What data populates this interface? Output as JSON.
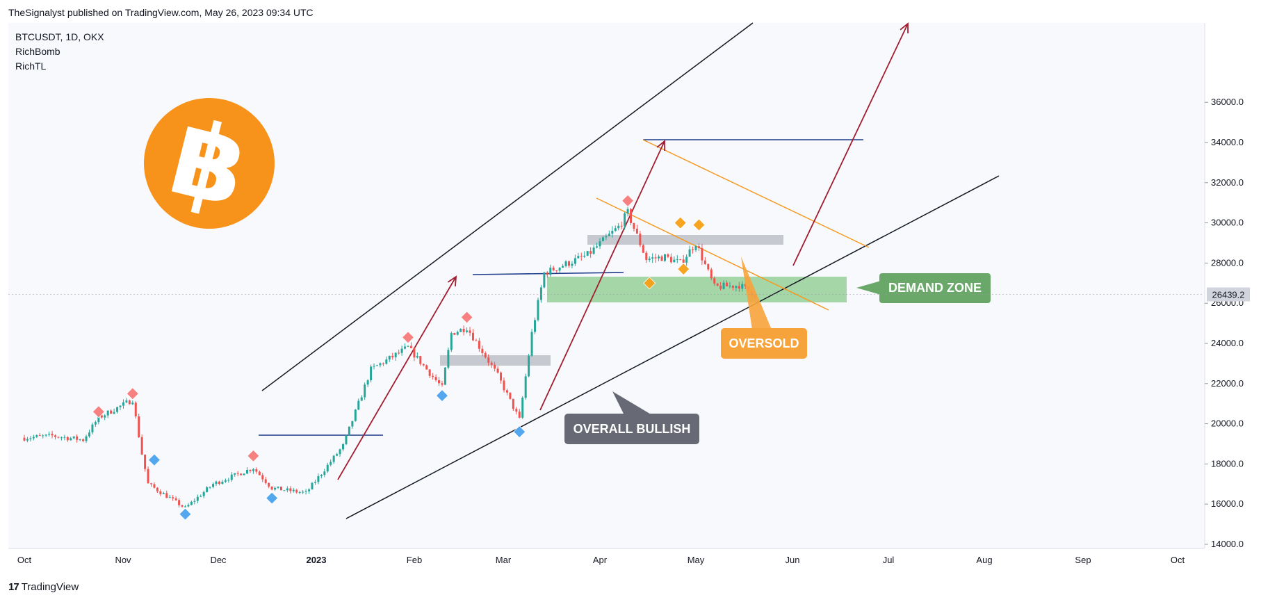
{
  "header": {
    "published": "TheSignalyst published on TradingView.com, May 26, 2023 09:34 UTC"
  },
  "legend": [
    "BTCUSDT, 1D, OKX",
    "RichBomb",
    "RichTL"
  ],
  "footer": {
    "mark": "17",
    "brand": "TradingView"
  },
  "colors": {
    "bull": "#26a69a",
    "bear": "#ef5350",
    "btc_orange": "#f7931a",
    "demand": "#a5d6a7",
    "support_grey": "#c7c9d1",
    "arrow": "#a21c2e",
    "orange_line": "#f59a23",
    "level_blue": "#1e3a8a",
    "price_tag": "#d1d4dc"
  },
  "chart_data": {
    "type": "candlestick",
    "symbol": "BTCUSDT",
    "interval": "1D",
    "exchange": "OKX",
    "x_axis": [
      "Oct",
      "Nov",
      "Dec",
      "2023",
      "Feb",
      "Mar",
      "Apr",
      "May",
      "Jun",
      "Jul",
      "Aug",
      "Sep",
      "Oct"
    ],
    "y_axis": [
      "36000.0",
      "34000.0",
      "32000.0",
      "30000.0",
      "28000.0",
      "26000.0",
      "24000.0",
      "22000.0",
      "20000.0",
      "18000.0",
      "16000.0",
      "14000.0"
    ],
    "ylim": [
      14000,
      36000
    ],
    "last_price": "26439.2",
    "close_path": [
      [
        "2022-10-01",
        19300
      ],
      [
        "2022-10-10",
        19400
      ],
      [
        "2022-10-20",
        19200
      ],
      [
        "2022-10-25",
        20300
      ],
      [
        "2022-11-05",
        21200
      ],
      [
        "2022-11-08",
        18500
      ],
      [
        "2022-11-10",
        17000
      ],
      [
        "2022-11-22",
        15800
      ],
      [
        "2022-12-01",
        17000
      ],
      [
        "2022-12-14",
        17800
      ],
      [
        "2022-12-20",
        16800
      ],
      [
        "2022-12-31",
        16550
      ],
      [
        "2023-01-12",
        18900
      ],
      [
        "2023-01-21",
        22700
      ],
      [
        "2023-02-02",
        23800
      ],
      [
        "2023-02-13",
        21800
      ],
      [
        "2023-02-16",
        24500
      ],
      [
        "2023-02-21",
        24800
      ],
      [
        "2023-03-03",
        22400
      ],
      [
        "2023-03-10",
        20200
      ],
      [
        "2023-03-14",
        24500
      ],
      [
        "2023-03-18",
        27500
      ],
      [
        "2023-04-01",
        28400
      ],
      [
        "2023-04-11",
        29800
      ],
      [
        "2023-04-14",
        30500
      ],
      [
        "2023-04-20",
        28200
      ],
      [
        "2023-04-26",
        28300
      ],
      [
        "2023-05-01",
        28000
      ],
      [
        "2023-05-06",
        29000
      ],
      [
        "2023-05-12",
        26800
      ],
      [
        "2023-05-20",
        26900
      ],
      [
        "2023-05-25",
        26439
      ]
    ],
    "signals": {
      "sell": [
        [
          "2022-10-25",
          20600
        ],
        [
          "2022-11-05",
          21500
        ],
        [
          "2022-12-14",
          18400
        ],
        [
          "2023-02-02",
          24300
        ],
        [
          "2023-02-21",
          25300
        ],
        [
          "2023-04-14",
          31100
        ]
      ],
      "buy": [
        [
          "2022-11-12",
          18200
        ],
        [
          "2022-11-22",
          15500
        ],
        [
          "2022-12-20",
          16300
        ],
        [
          "2023-02-13",
          21400
        ],
        [
          "2023-03-10",
          19600
        ]
      ],
      "orange": [
        [
          "2023-04-21",
          27000
        ],
        [
          "2023-05-01",
          30000
        ],
        [
          "2023-05-02",
          27700
        ],
        [
          "2023-05-07",
          29900
        ]
      ]
    },
    "annotations": {
      "demand_zone": "DEMAND ZONE",
      "oversold": "OVERSOLD",
      "overall_bullish": "OVERALL BULLISH"
    }
  }
}
